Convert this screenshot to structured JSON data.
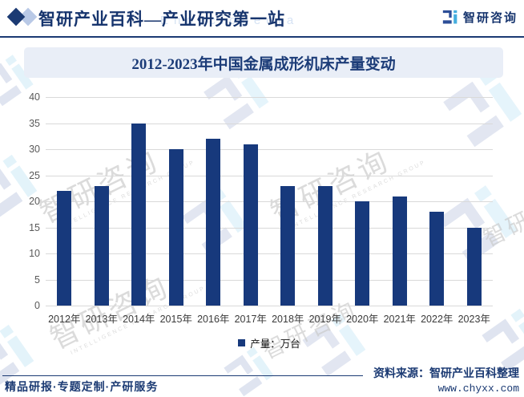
{
  "header": {
    "brand": "智研产业百科—产业研究第一站",
    "logo_text": "智研咨询"
  },
  "chart_data": {
    "type": "bar",
    "title": "2012-2023年中国金属成形机床产量变动",
    "categories": [
      "2012年",
      "2013年",
      "2014年",
      "2015年",
      "2016年",
      "2017年",
      "2018年",
      "2019年",
      "2020年",
      "2021年",
      "2022年",
      "2023年"
    ],
    "values": [
      22,
      23,
      35,
      30,
      32,
      31,
      23,
      23,
      20,
      21,
      18,
      15
    ],
    "series_name": "产量",
    "unit": "万台",
    "legend_label": "产量：万台",
    "xlabel": "",
    "ylabel": "",
    "ylim": [
      0,
      40
    ],
    "ytick_step": 5,
    "grid": true,
    "legend_position": "bottom",
    "bar_color": "#17397c"
  },
  "footer": {
    "tagline": "精品研报·专题定制·产研服务",
    "source": "资料来源：智研产业百科整理",
    "website": "www.chyxx.com"
  },
  "watermarks": {
    "cn": "智研咨询",
    "en": "INTELLIGENCE RESEARCH GROUP",
    "header_en": "Encyclopedia"
  },
  "colors": {
    "navy": "#1b3a73",
    "bar": "#17397c",
    "band_bg": "#e9eef7",
    "grid": "#d9d9d9",
    "axis_text": "#595959",
    "logo_dark": "#2c4d97",
    "logo_light": "#45aede"
  }
}
